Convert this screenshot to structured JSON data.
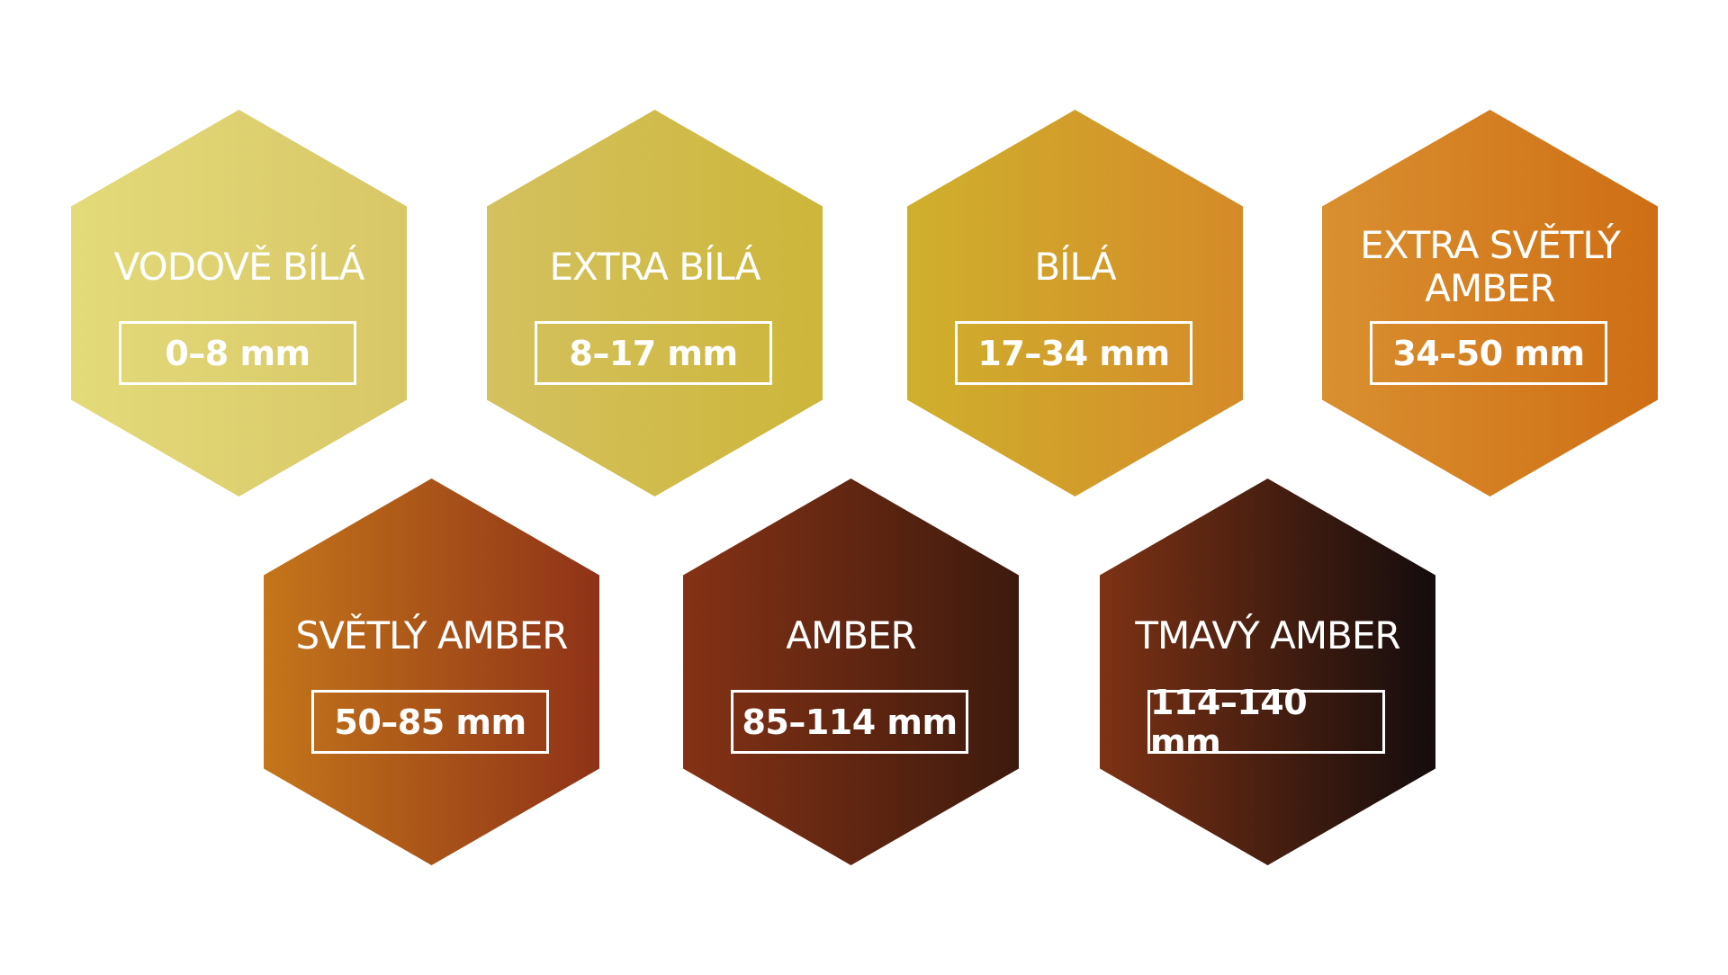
{
  "grades": [
    {
      "name": "VODOVĚ BÍLÁ",
      "range": "0–8 mm",
      "color_start": "#e3da7a",
      "color_end": "#d8c766"
    },
    {
      "name": "EXTRA BÍLÁ",
      "range": "8–17 mm",
      "color_start": "#d4c15f",
      "color_end": "#cdb63a"
    },
    {
      "name": "BÍLÁ",
      "range": "17–34 mm",
      "color_start": "#cfb02d",
      "color_end": "#d58a28"
    },
    {
      "name": "EXTRA SVĚTLÝ AMBER",
      "name_line1": "EXTRA SVĚTLÝ",
      "name_line2": "AMBER",
      "range": "34–50 mm",
      "color_start": "#d99030",
      "color_end": "#cf6e14"
    },
    {
      "name": "SVĚTLÝ AMBER",
      "range": "50–85 mm",
      "color_start": "#c4761a",
      "color_end": "#8f3218"
    },
    {
      "name": "AMBER",
      "range": "85–114 mm",
      "color_start": "#853215",
      "color_end": "#3d1a0e"
    },
    {
      "name": "TMAVÝ AMBER",
      "range": "114–140 mm",
      "color_start": "#7d3214",
      "color_end": "#140c0d"
    }
  ]
}
